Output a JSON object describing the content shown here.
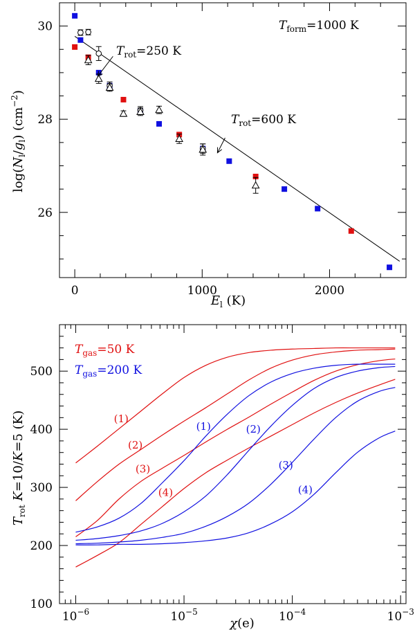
{
  "chart_data": [
    {
      "type": "scatter",
      "name": "rotation-diagram",
      "xlabel": "E_l (K)",
      "ylabel": "log(N_l/g_l) (cm^-2)",
      "xlim": [
        -120,
        2600
      ],
      "ylim": [
        24.6,
        30.5
      ],
      "x_ticks": [
        0,
        1000,
        2000
      ],
      "x_tick_labels": [
        "0",
        "1000",
        "2000"
      ],
      "y_ticks": [
        26,
        28,
        30
      ],
      "y_tick_labels": [
        "26",
        "28",
        "30"
      ],
      "annotations": {
        "tform": "T_form=1000 K",
        "trot250": "T_rot=250 K",
        "trot600": "T_rot=600 K"
      },
      "fit_line": {
        "x": [
          0,
          2550
        ],
        "y": [
          29.78,
          24.95
        ]
      },
      "arrow_250": {
        "from": [
          300,
          29.35
        ],
        "to": [
          180,
          28.92
        ]
      },
      "arrow_600": {
        "from": [
          1180,
          27.6
        ],
        "to": [
          1120,
          27.28
        ]
      },
      "series": [
        {
          "name": "red squares",
          "color": "#e01010",
          "marker": "square",
          "points": [
            [
              0,
              29.55
            ],
            [
              106,
              29.33
            ],
            [
              382,
              28.42
            ],
            [
              820,
              27.67
            ],
            [
              1420,
              26.77
            ],
            [
              2170,
              25.6
            ]
          ]
        },
        {
          "name": "blue squares",
          "color": "#1010e0",
          "marker": "square",
          "points": [
            [
              0,
              30.22
            ],
            [
              45,
              29.7
            ],
            [
              188,
              29.0
            ],
            [
              274,
              28.72
            ],
            [
              515,
              28.17
            ],
            [
              662,
              27.9
            ],
            [
              1005,
              27.37
            ],
            [
              1212,
              27.1
            ],
            [
              1645,
              26.5
            ],
            [
              1906,
              26.08
            ],
            [
              2470,
              24.82
            ]
          ]
        },
        {
          "name": "open circles",
          "color": "#000000",
          "marker": "circle",
          "points": [
            [
              45,
              29.86
            ],
            [
              106,
              29.87
            ],
            [
              188,
              29.41
            ],
            [
              274,
              28.72
            ],
            [
              515,
              28.19
            ],
            [
              1005,
              27.37
            ]
          ],
          "errors": [
            0.06,
            0.06,
            0.15,
            0.08,
            0.08,
            0.1
          ]
        },
        {
          "name": "open triangles",
          "color": "#000000",
          "marker": "triangle",
          "points": [
            [
              106,
              29.27
            ],
            [
              188,
              28.87
            ],
            [
              274,
              28.68
            ],
            [
              382,
              28.12
            ],
            [
              515,
              28.16
            ],
            [
              662,
              28.2
            ],
            [
              820,
              27.58
            ],
            [
              1005,
              27.35
            ],
            [
              1420,
              26.58
            ]
          ],
          "errors": [
            0.1,
            0.1,
            0.08,
            0.06,
            0.08,
            0.08,
            0.1,
            0.12,
            0.17
          ]
        }
      ]
    },
    {
      "type": "line",
      "name": "trot-vs-chi",
      "xlabel": "χ(e)",
      "ylabel": "T_rot K=10/K=5 (K)",
      "xscale": "log",
      "xlim": [
        -6.15,
        -2.95
      ],
      "ylim": [
        100,
        580
      ],
      "x_ticks": [
        -6,
        -5,
        -4,
        -3
      ],
      "x_tick_labels": [
        "10^-6",
        "10^-5",
        "10^-4",
        "10^-3"
      ],
      "y_ticks": [
        100,
        200,
        300,
        400,
        500
      ],
      "y_tick_labels": [
        "100",
        "200",
        "300",
        "400",
        "500"
      ],
      "legend": [
        {
          "label": "T_gas=50 K",
          "color": "#e01010"
        },
        {
          "label": "T_gas=200 K",
          "color": "#1010e0"
        }
      ],
      "series": [
        {
          "name": "50 K (1)",
          "color": "#e01010",
          "label": "(1)",
          "label_at": [
            -5.58,
            412
          ],
          "x": [
            -6,
            -5.8,
            -5.6,
            -5.4,
            -5.2,
            -5.0,
            -4.8,
            -4.6,
            -4.4,
            -4.2,
            -4.0,
            -3.8,
            -3.6,
            -3.4,
            -3.2,
            -3.05
          ],
          "y": [
            342,
            371,
            401,
            431,
            461,
            489,
            510,
            524,
            532,
            536,
            538,
            539,
            540,
            540,
            540,
            540
          ]
        },
        {
          "name": "50 K (2)",
          "color": "#e01010",
          "label": "(2)",
          "label_at": [
            -5.45,
            367
          ],
          "x": [
            -6,
            -5.8,
            -5.6,
            -5.4,
            -5.2,
            -5.0,
            -4.8,
            -4.6,
            -4.4,
            -4.2,
            -4.0,
            -3.8,
            -3.6,
            -3.4,
            -3.2,
            -3.05
          ],
          "y": [
            277,
            310,
            340,
            365,
            390,
            414,
            437,
            461,
            485,
            505,
            519,
            528,
            533,
            536,
            537,
            538
          ]
        },
        {
          "name": "50 K (3)",
          "color": "#e01010",
          "label": "(3)",
          "label_at": [
            -5.38,
            326
          ],
          "x": [
            -6,
            -5.8,
            -5.6,
            -5.4,
            -5.2,
            -5.0,
            -4.8,
            -4.6,
            -4.4,
            -4.2,
            -4.0,
            -3.8,
            -3.6,
            -3.4,
            -3.2,
            -3.05
          ],
          "y": [
            215,
            243,
            280,
            310,
            333,
            355,
            378,
            400,
            421,
            443,
            464,
            484,
            500,
            511,
            518,
            521
          ]
        },
        {
          "name": "50 K (4)",
          "color": "#e01010",
          "label": "(4)",
          "label_at": [
            -5.17,
            285
          ],
          "x": [
            -6,
            -5.8,
            -5.6,
            -5.4,
            -5.2,
            -5.0,
            -4.8,
            -4.6,
            -4.4,
            -4.2,
            -4.0,
            -3.8,
            -3.6,
            -3.4,
            -3.2,
            -3.05
          ],
          "y": [
            163,
            183,
            205,
            236,
            267,
            298,
            325,
            347,
            368,
            388,
            408,
            428,
            446,
            462,
            476,
            486
          ]
        },
        {
          "name": "200 K (1)",
          "color": "#1010e0",
          "label": "(1)",
          "label_at": [
            -4.82,
            399
          ],
          "x": [
            -6,
            -5.8,
            -5.6,
            -5.4,
            -5.2,
            -5.0,
            -4.8,
            -4.6,
            -4.4,
            -4.2,
            -4.0,
            -3.8,
            -3.6,
            -3.4,
            -3.2,
            -3.05
          ],
          "y": [
            223,
            232,
            247,
            272,
            308,
            346,
            388,
            426,
            458,
            481,
            496,
            505,
            510,
            512,
            512,
            512
          ]
        },
        {
          "name": "200 K (2)",
          "color": "#1010e0",
          "label": "(2)",
          "label_at": [
            -4.36,
            394
          ],
          "x": [
            -6,
            -5.8,
            -5.6,
            -5.4,
            -5.2,
            -5.0,
            -4.8,
            -4.6,
            -4.4,
            -4.2,
            -4.0,
            -3.8,
            -3.6,
            -3.4,
            -3.2,
            -3.05
          ],
          "y": [
            209,
            212,
            217,
            225,
            238,
            258,
            285,
            322,
            364,
            405,
            441,
            470,
            489,
            500,
            506,
            508
          ]
        },
        {
          "name": "200 K (3)",
          "color": "#1010e0",
          "label": "(3)",
          "label_at": [
            -4.06,
            332
          ],
          "x": [
            -6,
            -5.8,
            -5.6,
            -5.4,
            -5.2,
            -5.0,
            -4.8,
            -4.6,
            -4.4,
            -4.2,
            -4.0,
            -3.8,
            -3.6,
            -3.4,
            -3.2,
            -3.05
          ],
          "y": [
            203,
            204,
            206,
            209,
            214,
            221,
            233,
            250,
            273,
            305,
            343,
            383,
            420,
            448,
            465,
            472
          ]
        },
        {
          "name": "200 K (4)",
          "color": "#1010e0",
          "label": "(4)",
          "label_at": [
            -3.88,
            290
          ],
          "x": [
            -6,
            -5.8,
            -5.6,
            -5.4,
            -5.2,
            -5.0,
            -4.8,
            -4.6,
            -4.4,
            -4.2,
            -4.0,
            -3.8,
            -3.6,
            -3.4,
            -3.2,
            -3.05
          ],
          "y": [
            201,
            201,
            202,
            202,
            203,
            205,
            208,
            213,
            222,
            237,
            258,
            288,
            325,
            360,
            385,
            397
          ]
        }
      ]
    }
  ]
}
